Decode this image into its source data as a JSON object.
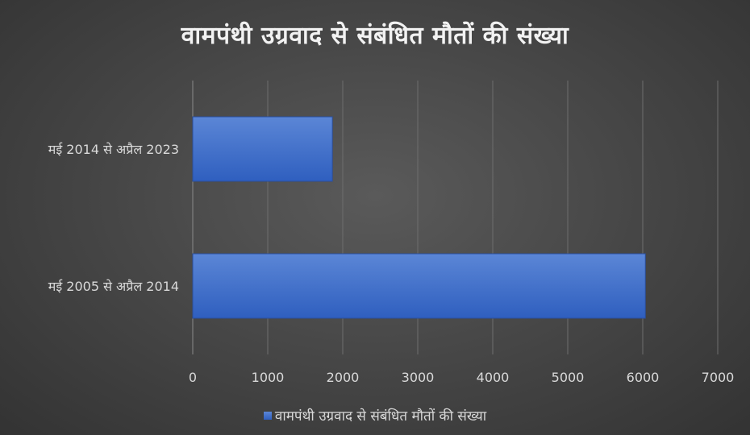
{
  "chart_data": {
    "type": "bar",
    "orientation": "horizontal",
    "title": "वामपंथी उग्रवाद से संबंधित मौतों की संख्या",
    "categories": [
      "मई 2014 से अप्रैल 2023",
      "मई 2005 से अप्रैल 2014"
    ],
    "series": [
      {
        "name": "वामपंथी उग्रवाद से संबंधित मौतों की संख्या",
        "values": [
          1862,
          6035
        ]
      }
    ],
    "xlim": [
      0,
      7000
    ],
    "xticks": [
      "0",
      "1000",
      "2000",
      "3000",
      "4000",
      "5000",
      "6000",
      "7000"
    ],
    "grid": true,
    "legend_position": "bottom",
    "colors": {
      "bar": "#3f6fcf",
      "bar_top": "#5b86d6",
      "bar_bottom": "#2f5fbf",
      "grid": "#6e6e6e",
      "text": "#d9d9d9"
    }
  }
}
